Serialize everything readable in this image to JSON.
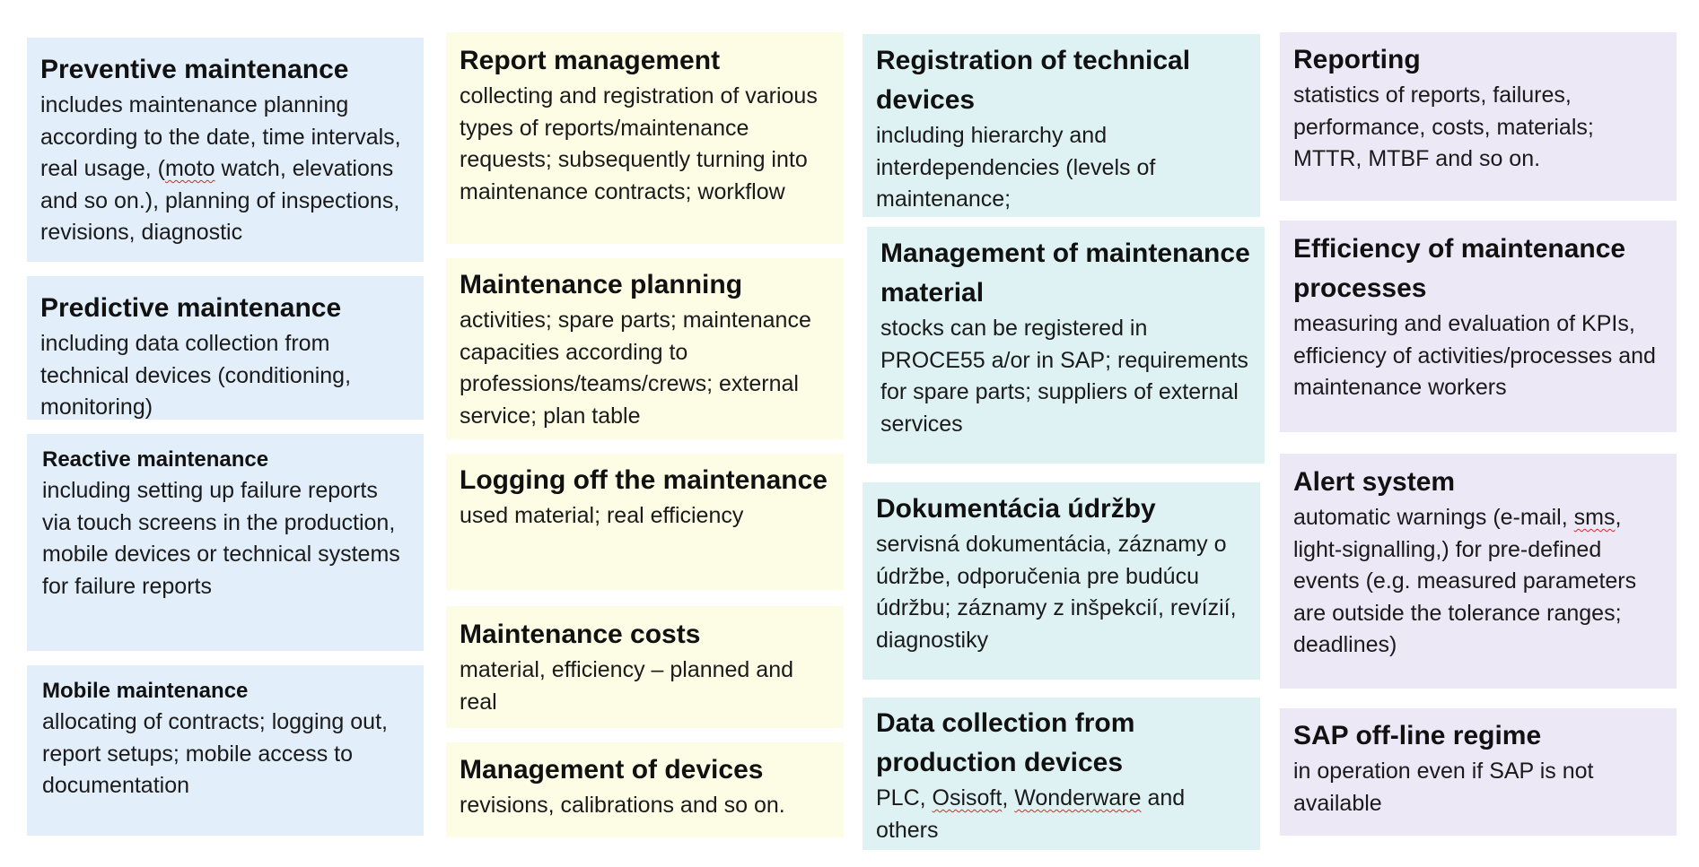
{
  "colors": {
    "column_1": "#e2eefa",
    "column_2": "#fdfde6",
    "column_3": "#dff2f3",
    "column_4": "#ece8f6",
    "spellcheck_underline": "#d62a2a"
  },
  "column_1": {
    "preventive": {
      "title": "Preventive maintenance",
      "body_a": "includes maintenance planning according to the date, time intervals, real usage, (",
      "body_b": "moto",
      "body_c": " watch, elevations and so on.), planning of inspections, revisions, diagnostic"
    },
    "predictive": {
      "title": "Predictive maintenance",
      "body": "including data collection from technical devices (conditioning, monitoring)"
    },
    "reactive": {
      "title": "Reactive maintenance",
      "body": "including setting up failure reports via touch screens in the production, mobile devices or technical systems for failure reports"
    },
    "mobile": {
      "title": "Mobile maintenance",
      "body": "allocating of contracts;  logging out, report setups; mobile access to documentation"
    }
  },
  "column_2": {
    "report_management": {
      "title": "Report management",
      "body": "collecting and registration of various types of reports/maintenance requests; subsequently turning into maintenance contracts; workflow"
    },
    "maintenance_planning": {
      "title": "Maintenance planning",
      "body": "activities; spare parts; maintenance capacities according to professions/teams/crews; external service; plan table"
    },
    "logging_off": {
      "title": "Logging off the maintenance",
      "body": "used material; real efficiency"
    },
    "maintenance_costs": {
      "title": "Maintenance costs",
      "body": "material, efficiency – planned and real"
    },
    "management_devices": {
      "title": "Management of devices",
      "body": "revisions, calibrations and so on."
    }
  },
  "column_3": {
    "registration": {
      "title": "Registration of technical devices",
      "body": "including hierarchy and interdependencies (levels of maintenance;"
    },
    "material": {
      "title": "Management of maintenance material",
      "body": "stocks can be registered in PROCE55 a/or in SAP; requirements for spare parts; suppliers of external services"
    },
    "documentation": {
      "title": "Dokumentácia údržby",
      "body": "servisná dokumentácia, záznamy o údržbe, odporučenia pre budúcu údržbu; záznamy z inšpekcií, revízií, diagnostiky"
    },
    "data_collection": {
      "title": "Data collection from production devices",
      "body_a": "PLC, ",
      "body_b": "Osisoft",
      "body_c": ", ",
      "body_d": "Wonderware",
      "body_e": " and others"
    }
  },
  "column_4": {
    "reporting": {
      "title": "Reporting",
      "body": "statistics of reports, failures, performance, costs, materials; MTTR, MTBF and so on."
    },
    "efficiency": {
      "title": "Efficiency of maintenance processes",
      "body": "measuring and evaluation of KPIs, efficiency of activities/processes and maintenance workers"
    },
    "alert": {
      "title": "Alert system",
      "body_a": "automatic warnings (e-mail, ",
      "body_b": "sms",
      "body_c": ", light-signalling,) for pre-defined events (e.g. measured parameters are outside the tolerance ranges; deadlines)"
    },
    "sap_offline": {
      "title": "SAP off-line regime",
      "body": "in operation even if SAP is not available"
    }
  }
}
